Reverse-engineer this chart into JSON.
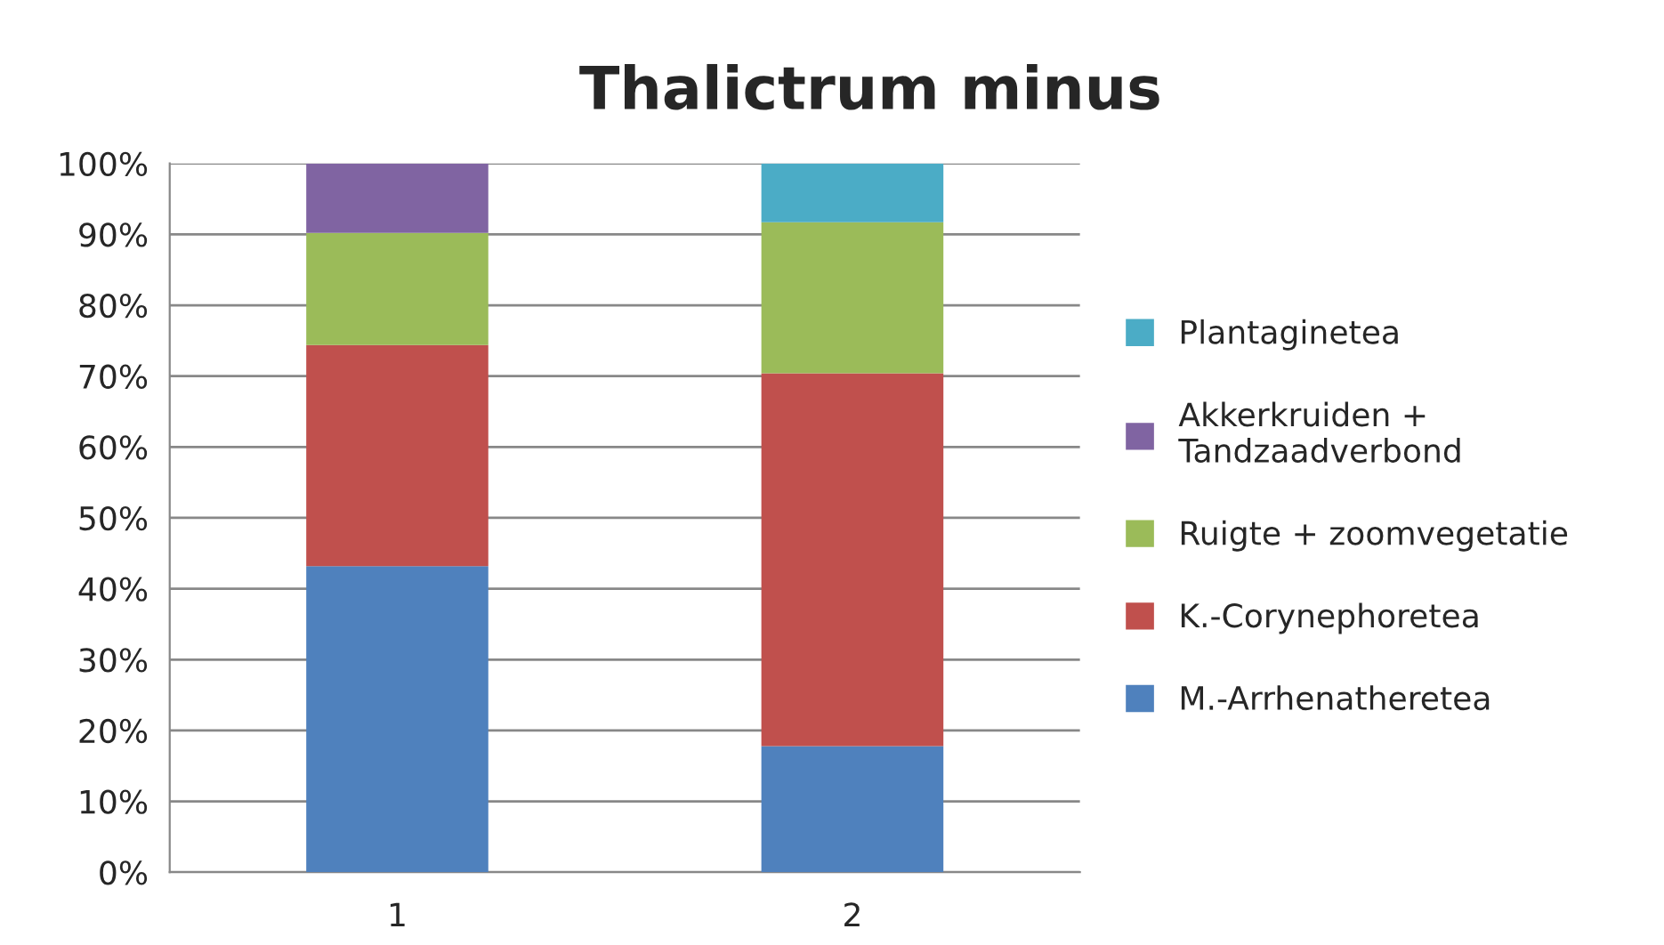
{
  "chart_data": {
    "type": "bar",
    "title": "Thalictrum minus",
    "categories": [
      "1",
      "2"
    ],
    "stacked": true,
    "series": [
      {
        "name": "M.-Arrhenatheretea",
        "color": "#4f81bd",
        "values": [
          43.2,
          17.8
        ]
      },
      {
        "name": "K.-Corynephoretea",
        "color": "#c0504d",
        "values": [
          31.2,
          52.6
        ]
      },
      {
        "name": "Ruigte + zoomvegetatie",
        "color": "#9bbb59",
        "values": [
          15.8,
          21.3
        ]
      },
      {
        "name": "Akkerkruiden + Tandzaadverbond",
        "color": "#8064a2",
        "values": [
          9.8,
          null
        ]
      },
      {
        "name": "Plantaginetea",
        "color": "#4bacc6",
        "values": [
          null,
          8.3
        ]
      }
    ],
    "ylim": [
      0,
      100
    ],
    "yticks": [
      {
        "value": 0,
        "label": "0%"
      },
      {
        "value": 10,
        "label": "10%"
      },
      {
        "value": 20,
        "label": "20%"
      },
      {
        "value": 30,
        "label": "30%"
      },
      {
        "value": 40,
        "label": "40%"
      },
      {
        "value": 50,
        "label": "50%"
      },
      {
        "value": 60,
        "label": "60%"
      },
      {
        "value": 70,
        "label": "70%"
      },
      {
        "value": 80,
        "label": "80%"
      },
      {
        "value": 90,
        "label": "90%"
      },
      {
        "value": 100,
        "label": "100%"
      }
    ],
    "grid": "y",
    "legend": "right"
  }
}
